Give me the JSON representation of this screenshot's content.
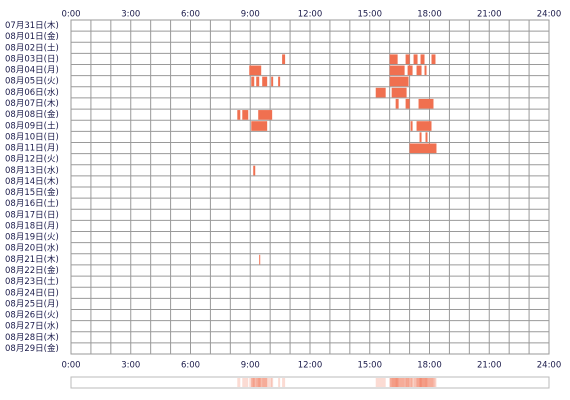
{
  "chart_data": {
    "type": "timeline",
    "categories": [
      "07月31日(木)",
      "08月01日(金)",
      "08月02日(土)",
      "08月03日(日)",
      "08月04日(月)",
      "08月05日(火)",
      "08月06日(水)",
      "08月07日(木)",
      "08月08日(金)",
      "08月09日(土)",
      "08月10日(日)",
      "08月11日(月)",
      "08月12日(火)",
      "08月13日(水)",
      "08月14日(木)",
      "08月15日(金)",
      "08月16日(土)",
      "08月17日(日)",
      "08月18日(月)",
      "08月19日(火)",
      "08月20日(水)",
      "08月21日(木)",
      "08月22日(金)",
      "08月23日(土)",
      "08月24日(日)",
      "08月25日(月)",
      "08月26日(火)",
      "08月27日(水)",
      "08月28日(木)",
      "08月29日(金)"
    ],
    "values": [
      [],
      [],
      [],
      [
        [
          10.6,
          10.75
        ],
        [
          16.0,
          16.4
        ],
        [
          16.8,
          17.0
        ],
        [
          17.2,
          17.4
        ],
        [
          17.55,
          17.75
        ],
        [
          18.1,
          18.3
        ]
      ],
      [
        [
          8.95,
          9.55
        ],
        [
          16.0,
          16.75
        ],
        [
          16.9,
          17.15
        ],
        [
          17.35,
          17.6
        ],
        [
          17.75,
          17.85
        ]
      ],
      [
        [
          9.05,
          9.2
        ],
        [
          9.3,
          9.45
        ],
        [
          9.6,
          9.85
        ],
        [
          10.05,
          10.15
        ],
        [
          10.4,
          10.5
        ],
        [
          16.0,
          16.95
        ]
      ],
      [
        [
          15.3,
          15.8
        ],
        [
          16.1,
          16.85
        ]
      ],
      [
        [
          16.3,
          16.45
        ],
        [
          16.8,
          17.0
        ],
        [
          17.45,
          18.2
        ]
      ],
      [
        [
          8.35,
          8.5
        ],
        [
          8.6,
          8.9
        ],
        [
          9.4,
          10.1
        ]
      ],
      [
        [
          9.05,
          9.85
        ],
        [
          17.05,
          17.15
        ],
        [
          17.35,
          18.1
        ]
      ],
      [
        [
          17.5,
          17.6
        ],
        [
          17.8,
          17.9
        ]
      ],
      [
        [
          17.0,
          18.35
        ]
      ],
      [],
      [
        [
          9.15,
          9.25
        ]
      ],
      [],
      [],
      [],
      [],
      [],
      [],
      [],
      [
        [
          9.45,
          9.5
        ]
      ],
      [],
      [],
      [],
      [],
      [],
      [],
      [],
      []
    ],
    "color": "#f07050",
    "xlim": [
      0,
      24
    ],
    "xticks": [
      {
        "value": 0,
        "label": "0:00"
      },
      {
        "value": 3,
        "label": "3:00"
      },
      {
        "value": 6,
        "label": "6:00"
      },
      {
        "value": 9,
        "label": "9:00"
      },
      {
        "value": 12,
        "label": "12:00"
      },
      {
        "value": 15,
        "label": "15:00"
      },
      {
        "value": 18,
        "label": "18:00"
      },
      {
        "value": 21,
        "label": "21:00"
      },
      {
        "value": 24,
        "label": "24:00"
      }
    ],
    "minor_xticks": [
      0,
      1,
      2,
      3,
      4,
      5,
      6,
      7,
      8,
      9,
      10,
      11,
      12,
      13,
      14,
      15,
      16,
      17,
      18,
      19,
      20,
      21,
      22,
      23,
      24
    ]
  }
}
